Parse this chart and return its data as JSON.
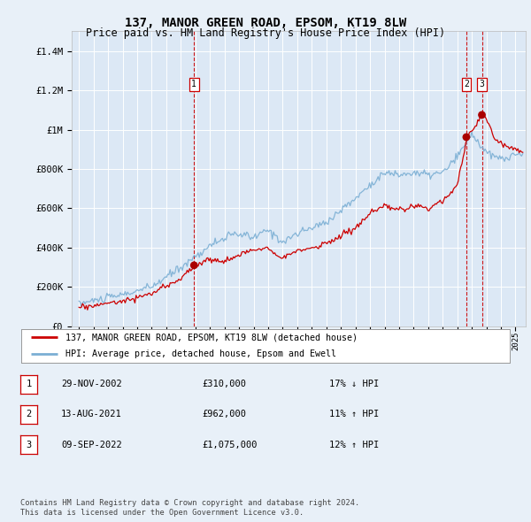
{
  "title1": "137, MANOR GREEN ROAD, EPSOM, KT19 8LW",
  "title2": "Price paid vs. HM Land Registry's House Price Index (HPI)",
  "legend_line1": "137, MANOR GREEN ROAD, EPSOM, KT19 8LW (detached house)",
  "legend_line2": "HPI: Average price, detached house, Epsom and Ewell",
  "sale_points": [
    {
      "label": "1",
      "date": 2002.91,
      "price": 310000
    },
    {
      "label": "2",
      "date": 2021.62,
      "price": 962000
    },
    {
      "label": "3",
      "date": 2022.69,
      "price": 1075000
    }
  ],
  "table_rows": [
    {
      "num": "1",
      "date": "29-NOV-2002",
      "price": "£310,000",
      "note": "17% ↓ HPI"
    },
    {
      "num": "2",
      "date": "13-AUG-2021",
      "price": "£962,000",
      "note": "11% ↑ HPI"
    },
    {
      "num": "3",
      "date": "09-SEP-2022",
      "price": "£1,075,000",
      "note": "12% ↑ HPI"
    }
  ],
  "footer1": "Contains HM Land Registry data © Crown copyright and database right 2024.",
  "footer2": "This data is licensed under the Open Government Licence v3.0.",
  "hpi_color": "#7bafd4",
  "price_color": "#cc0000",
  "sale_marker_color": "#aa0000",
  "vline_color": "#cc0000",
  "bg_color": "#e8f0f8",
  "plot_bg": "#dce8f5",
  "grid_color": "#ffffff",
  "ylim_max": 1500000,
  "xlim_min": 1994.5,
  "xlim_max": 2025.7
}
